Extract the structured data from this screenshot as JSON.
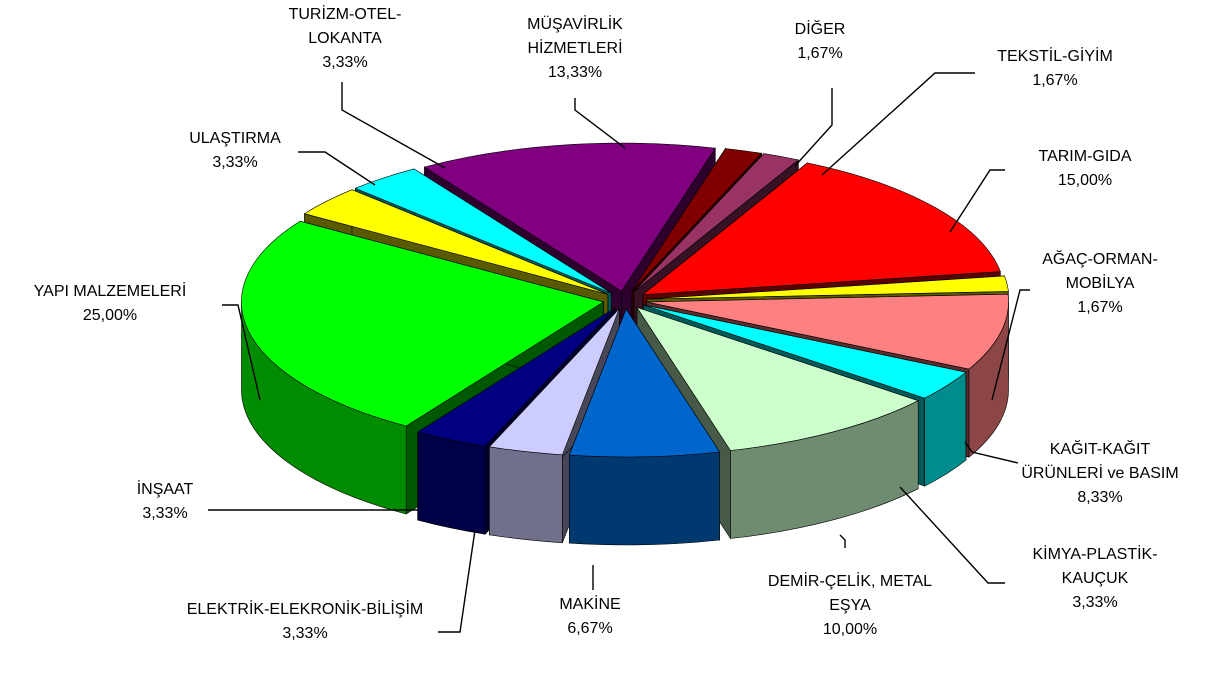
{
  "chart_data": {
    "type": "pie",
    "categories": [
      "DİĞER",
      "TEKSTİL-GİYİM",
      "TARIM-GIDA",
      "AĞAÇ-ORMAN-MOBİLYA",
      "KAĞIT-KAĞIT ÜRÜNLERİ ve BASIM",
      "KİMYA-PLASTİK-KAUÇUK",
      "DEMİR-ÇELİK, METAL EŞYA",
      "MAKİNE",
      "ELEKTRİK-ELEKRONİK-BİLİŞİM",
      "İNŞAAT",
      "YAPI MALZEMELERİ",
      "ULAŞTIRMA",
      "TURİZM-OTEL-LOKANTA",
      "MÜŞAVİRLİK HİZMETLERİ"
    ],
    "values": [
      1.67,
      1.67,
      15,
      1.67,
      8.33,
      3.33,
      10,
      6.67,
      3.33,
      3.33,
      25,
      3.33,
      3.33,
      13.33
    ],
    "value_labels": [
      "1,67%",
      "1,67%",
      "15,00%",
      "1,67%",
      "8,33%",
      "3,33%",
      "10,00%",
      "6,67%",
      "3,33%",
      "3,33%",
      "25,00%",
      "3,33%",
      "3,33%",
      "13,33%"
    ],
    "colors": [
      "#800000",
      "#993366",
      "#ff0000",
      "#ffff00",
      "#ff8080",
      "#00ffff",
      "#ccffcc",
      "#0066cc",
      "#ccccff",
      "#000080",
      "#00ff00",
      "#ffff00",
      "#00ffff",
      "#800080"
    ]
  }
}
